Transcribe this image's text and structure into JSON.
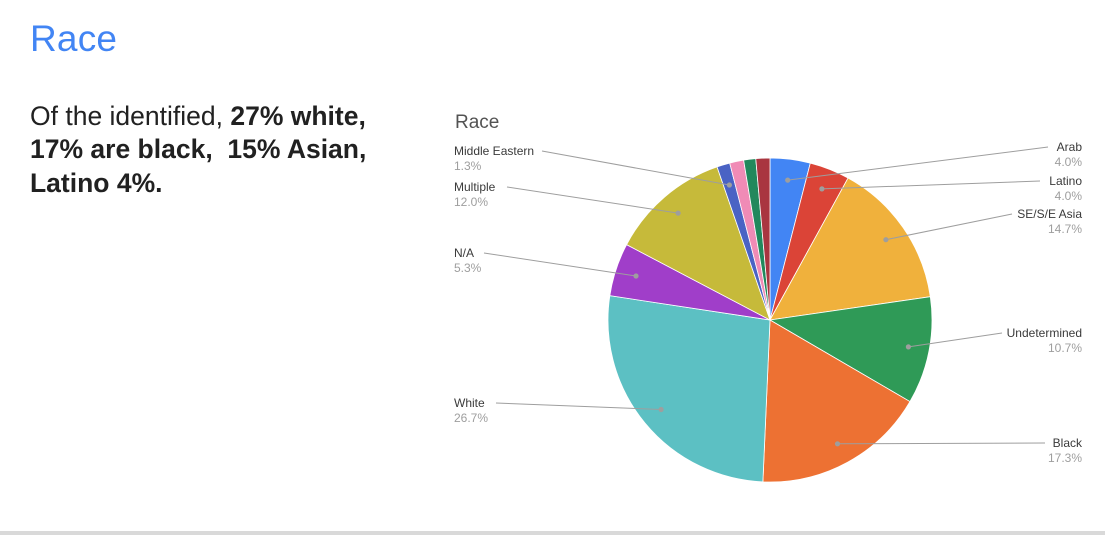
{
  "slide": {
    "title": "Race",
    "body": {
      "normal": "Of the identified, ",
      "bold": "27% white, 17% are black,  15% Asian, Latino 4%."
    }
  },
  "chart_data": {
    "type": "pie",
    "title": "Race",
    "legend_position": "labeled-callouts",
    "slices": [
      {
        "label": "Arab",
        "value": 4.0,
        "display": "4.0%",
        "color": "#4285F4"
      },
      {
        "label": "Latino",
        "value": 4.0,
        "display": "4.0%",
        "color": "#DB4437"
      },
      {
        "label": "SE/S/E Asia",
        "value": 14.7,
        "display": "14.7%",
        "color": "#F0B13C"
      },
      {
        "label": "Undetermined",
        "value": 10.7,
        "display": "10.7%",
        "color": "#2F9A57"
      },
      {
        "label": "Black",
        "value": 17.3,
        "display": "17.3%",
        "color": "#ED7133"
      },
      {
        "label": "White",
        "value": 26.7,
        "display": "26.7%",
        "color": "#5CC0C3"
      },
      {
        "label": "N/A",
        "value": 5.3,
        "display": "5.3%",
        "color": "#A03EC9"
      },
      {
        "label": "Multiple",
        "value": 12.0,
        "display": "12.0%",
        "color": "#C6BA3A"
      },
      {
        "label": "Middle Eastern",
        "value": 1.3,
        "display": "1.3%",
        "color": "#4A63C4"
      },
      {
        "label": "",
        "value": 1.4,
        "display": "",
        "color": "#F08BB6"
      },
      {
        "label": "",
        "value": 1.2,
        "display": "",
        "color": "#22885C"
      },
      {
        "label": "",
        "value": 1.4,
        "display": "",
        "color": "#A93540"
      }
    ]
  }
}
